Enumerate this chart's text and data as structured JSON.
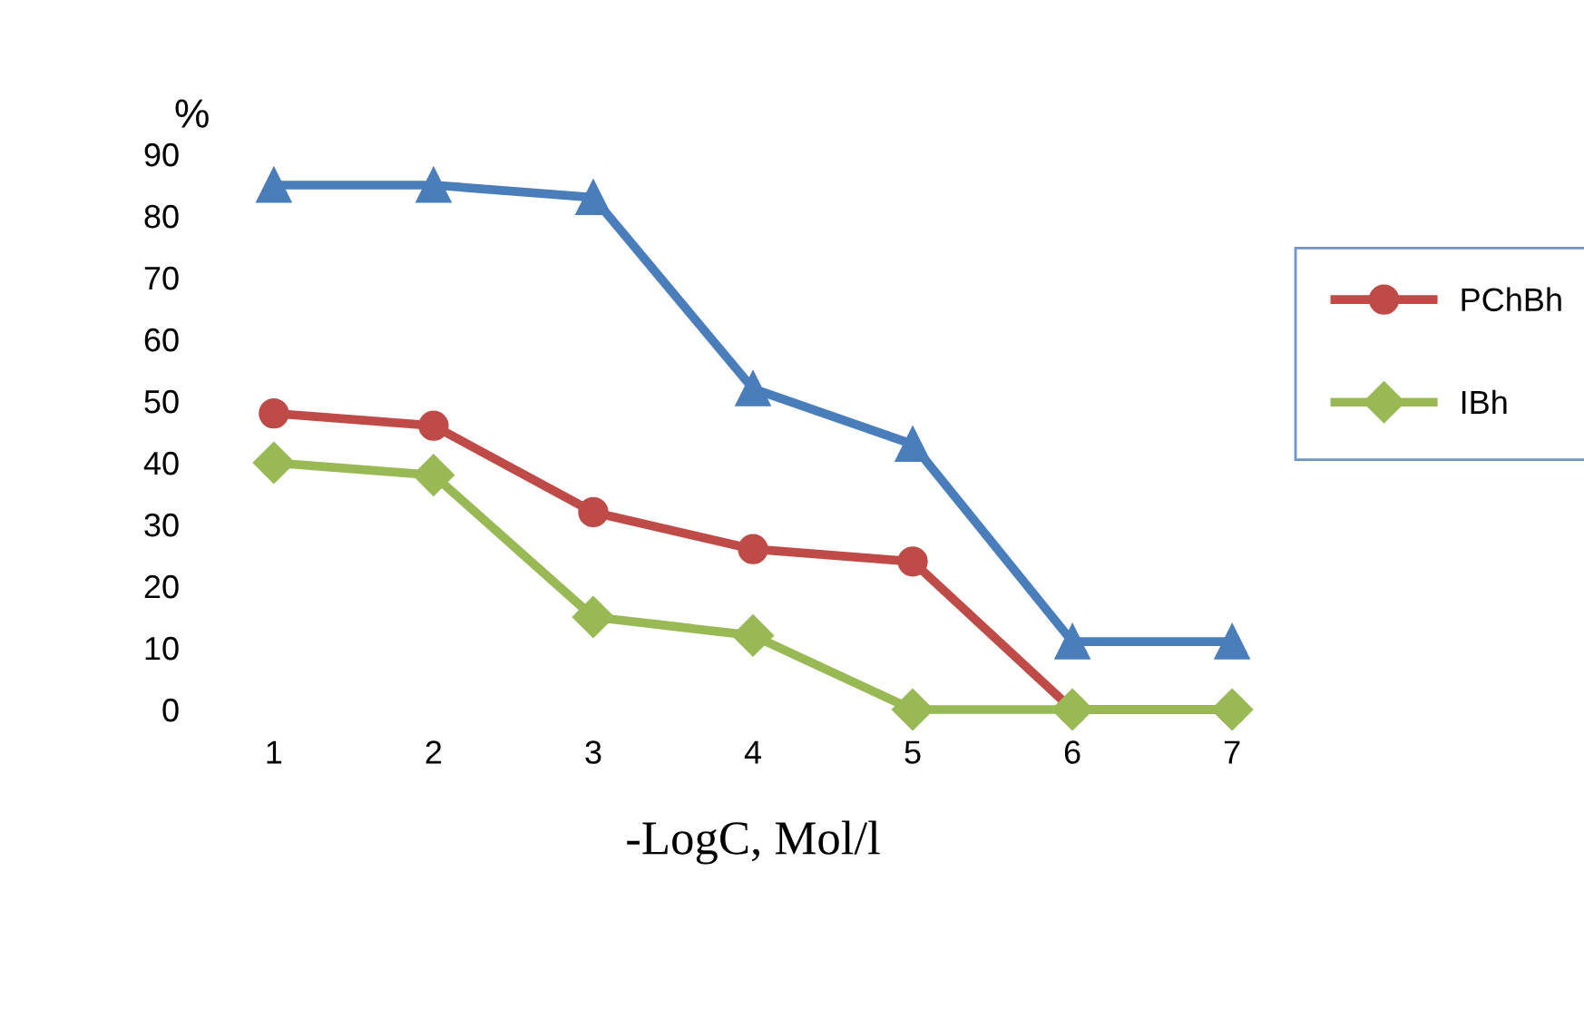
{
  "chart_data": {
    "type": "line",
    "xlabel": "-LogC, Mol/l",
    "ylabel": "%",
    "categories": [
      "1",
      "2",
      "3",
      "4",
      "5",
      "6",
      "7"
    ],
    "series": [
      {
        "color": "#4a7ebb",
        "marker": "triangle",
        "values": [
          85,
          85,
          83,
          52,
          43,
          11,
          11
        ]
      },
      {
        "name": "PChBh",
        "color": "#be4b48",
        "marker": "circle",
        "values": [
          48,
          46,
          32,
          26,
          24,
          0,
          0
        ]
      },
      {
        "name": "IBh",
        "color": "#98b954",
        "marker": "diamond",
        "values": [
          40,
          38,
          15,
          12,
          0,
          0,
          0
        ]
      }
    ],
    "ylim": [
      0,
      90
    ],
    "yticks": [
      0,
      10,
      20,
      30,
      40,
      50,
      60,
      70,
      80,
      90
    ],
    "grid": false,
    "legend": "right",
    "line_style": "solid"
  }
}
